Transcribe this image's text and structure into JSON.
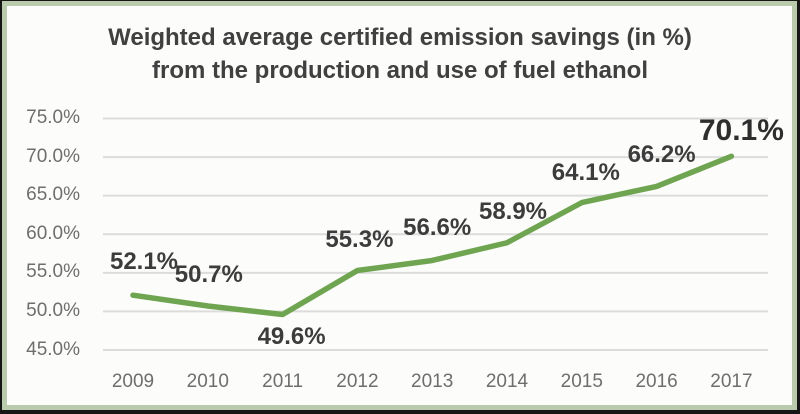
{
  "chart_data": {
    "type": "line",
    "title_line1": "Weighted average certified emission savings (in %)",
    "title_line2": "from the production and use of fuel ethanol",
    "categories": [
      "2009",
      "2010",
      "2011",
      "2012",
      "2013",
      "2014",
      "2015",
      "2016",
      "2017"
    ],
    "values": [
      52.1,
      50.7,
      49.6,
      55.3,
      56.6,
      58.9,
      64.1,
      66.2,
      70.1
    ],
    "labels": [
      "52.1%",
      "50.7%",
      "49.6%",
      "55.3%",
      "56.6%",
      "58.9%",
      "64.1%",
      "66.2%",
      "70.1%"
    ],
    "y_ticks": [
      "45.0%",
      "50.0%",
      "55.0%",
      "60.0%",
      "65.0%",
      "70.0%",
      "75.0%"
    ],
    "y_tick_values": [
      45,
      50,
      55,
      60,
      65,
      70,
      75
    ],
    "ylim": [
      45,
      75
    ],
    "xlabel": "",
    "ylabel": "",
    "legend": "none",
    "grid": true,
    "series_name": "Weighted average certified emission savings",
    "line_color": "#6fa551",
    "label_color": "#3c3c3c",
    "tick_color": "#6e6e6e",
    "grid_color": "#dcdcdc",
    "border_color": "#b9cbac",
    "background_color": "#fcfcfa",
    "emphasized_last_label": true
  }
}
